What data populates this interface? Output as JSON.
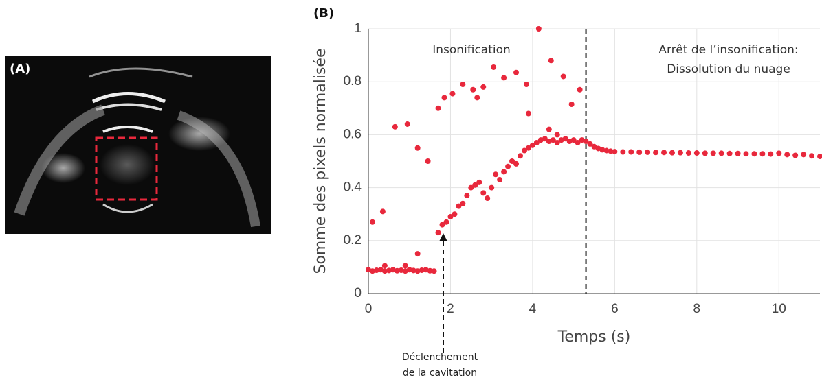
{
  "panel_a": {
    "label": "(A)"
  },
  "chart_data": {
    "type": "scatter",
    "panel_label": "(B)",
    "xlabel": "Temps (s)",
    "ylabel": "Somme des pixels normalisée",
    "xlim": [
      0,
      11
    ],
    "ylim": [
      0,
      1
    ],
    "xticks": [
      0,
      2,
      4,
      6,
      8,
      10
    ],
    "yticks": [
      0,
      0.2,
      0.4,
      0.6,
      0.8,
      1
    ],
    "grid": true,
    "color": "#e8283c",
    "vlines": [
      5.3
    ],
    "annotations": [
      {
        "text": [
          "Insonification"
        ]
      },
      {
        "text": [
          "Arrêt de l’insonification:",
          "Dissolution du nuage"
        ]
      },
      {
        "text": [
          "Déclenchement",
          "de la cavitation"
        ]
      }
    ],
    "x": [
      0,
      0.1,
      0.2,
      0.3,
      0.4,
      0.5,
      0.6,
      0.7,
      0.8,
      0.9,
      1,
      1.1,
      1.2,
      1.3,
      1.4,
      1.5,
      1.6,
      0.1,
      0.35,
      0.4,
      0.65,
      0.9,
      0.95,
      1.2,
      1.2,
      1.45,
      1.7,
      1.8,
      1.9,
      2,
      2.1,
      2.2,
      2.3,
      2.4,
      2.5,
      2.6,
      2.7,
      2.8,
      2.9,
      3,
      3.1,
      3.2,
      3.3,
      3.4,
      3.5,
      3.6,
      3.7,
      3.8,
      3.9,
      4,
      4.1,
      4.2,
      4.3,
      4.4,
      4.5,
      4.6,
      4.7,
      4.8,
      4.9,
      5,
      5.1,
      5.2,
      5.3,
      1.7,
      1.85,
      2.05,
      2.3,
      2.55,
      2.65,
      2.8,
      3.05,
      3.3,
      3.6,
      3.85,
      3.9,
      4.15,
      4.45,
      4.75,
      4.95,
      5.15,
      4.4,
      4.6,
      5.4,
      5.5,
      5.6,
      5.7,
      5.8,
      5.9,
      6,
      6.2,
      6.4,
      6.6,
      6.8,
      7,
      7.2,
      7.4,
      7.6,
      7.8,
      8,
      8.2,
      8.4,
      8.6,
      8.8,
      9,
      9.2,
      9.4,
      9.6,
      9.8,
      10,
      10.2,
      10.4,
      10.6,
      10.8,
      11
    ],
    "values": [
      0.09,
      0.085,
      0.088,
      0.09,
      0.085,
      0.087,
      0.09,
      0.086,
      0.088,
      0.085,
      0.09,
      0.087,
      0.085,
      0.088,
      0.09,
      0.086,
      0.085,
      0.27,
      0.31,
      0.105,
      0.63,
      0.105,
      0.64,
      0.55,
      0.15,
      0.5,
      0.23,
      0.26,
      0.27,
      0.29,
      0.3,
      0.33,
      0.34,
      0.37,
      0.4,
      0.41,
      0.42,
      0.38,
      0.36,
      0.4,
      0.45,
      0.43,
      0.46,
      0.48,
      0.5,
      0.49,
      0.52,
      0.54,
      0.55,
      0.56,
      0.57,
      0.58,
      0.585,
      0.575,
      0.58,
      0.57,
      0.58,
      0.585,
      0.575,
      0.58,
      0.57,
      0.58,
      0.575,
      0.7,
      0.74,
      0.755,
      0.79,
      0.77,
      0.74,
      0.78,
      0.855,
      0.815,
      0.835,
      0.79,
      0.68,
      1,
      0.88,
      0.82,
      0.715,
      0.77,
      0.62,
      0.6,
      0.565,
      0.555,
      0.548,
      0.543,
      0.54,
      0.538,
      0.536,
      0.535,
      0.535,
      0.534,
      0.534,
      0.533,
      0.533,
      0.532,
      0.532,
      0.531,
      0.531,
      0.53,
      0.53,
      0.53,
      0.529,
      0.529,
      0.528,
      0.528,
      0.528,
      0.527,
      0.53,
      0.525,
      0.522,
      0.525,
      0.52,
      0.518
    ]
  }
}
